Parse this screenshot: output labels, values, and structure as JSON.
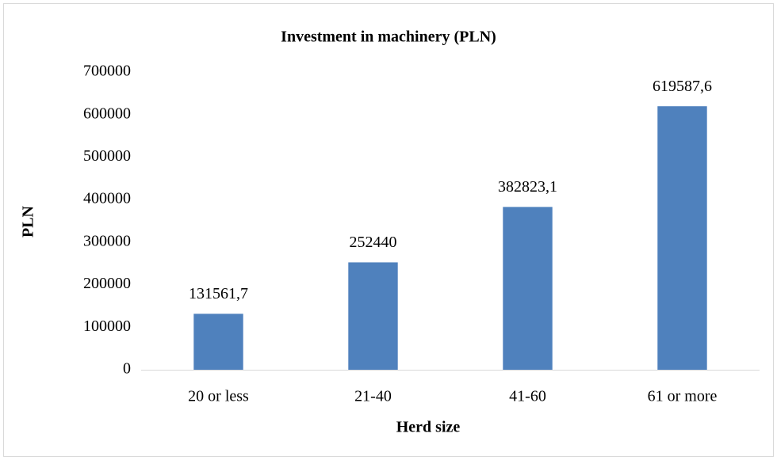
{
  "chart_data": {
    "type": "bar",
    "title": "Investment in machinery (PLN)",
    "x_label": "Herd size",
    "y_label": "PLN",
    "categories": [
      "20 or less",
      "21-40",
      "41-60",
      "61 or more"
    ],
    "values": [
      131561.7,
      252440,
      382823.1,
      619587.6
    ],
    "value_labels": [
      "131561,7",
      "252440",
      "382823,1",
      "619587,6"
    ],
    "color": "#4f81bd",
    "ylim": [
      0,
      700000
    ],
    "yticks": [
      0,
      100000,
      200000,
      300000,
      400000,
      500000,
      600000,
      700000
    ],
    "grid": false
  }
}
